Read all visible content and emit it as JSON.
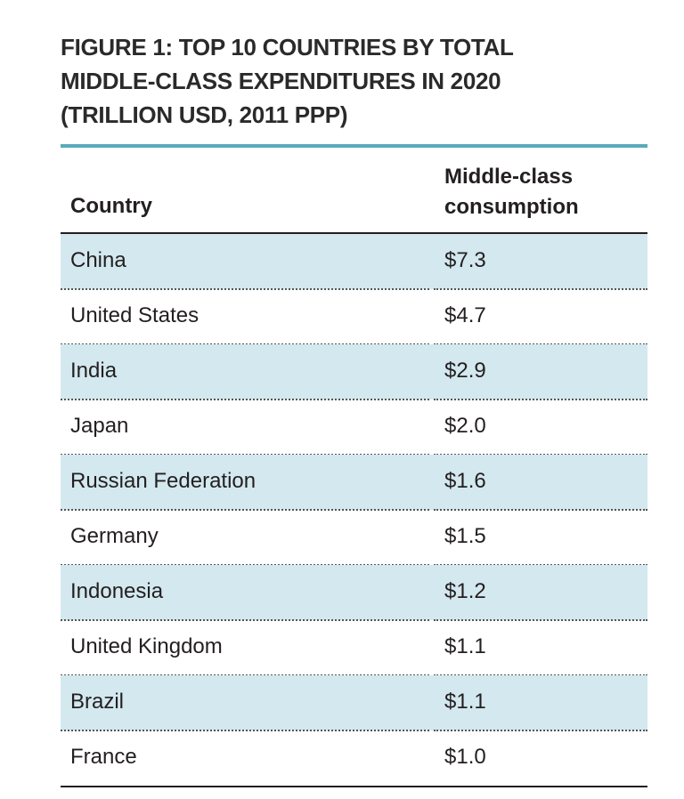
{
  "chart_data": {
    "type": "table",
    "title": [
      "FIGURE 1: TOP 10 COUNTRIES BY TOTAL",
      "MIDDLE-CLASS EXPENDITURES IN 2020",
      "(TRILLION USD, 2011 PPP)"
    ],
    "columns": [
      "Country",
      [
        "Middle-class",
        "consumption"
      ]
    ],
    "rows": [
      {
        "country": "China",
        "value": "$7.3"
      },
      {
        "country": "United States",
        "value": "$4.7"
      },
      {
        "country": "India",
        "value": "$2.9"
      },
      {
        "country": "Japan",
        "value": "$2.0"
      },
      {
        "country": "Russian Federation",
        "value": "$1.6"
      },
      {
        "country": "Germany",
        "value": "$1.5"
      },
      {
        "country": "Indonesia",
        "value": "$1.2"
      },
      {
        "country": "United Kingdom",
        "value": "$1.1"
      },
      {
        "country": "Brazil",
        "value": "$1.1"
      },
      {
        "country": "France",
        "value": "$1.0"
      }
    ],
    "colors": {
      "accent_rule": "#5aa9bd",
      "row_shade": "#d3e8ef"
    }
  }
}
